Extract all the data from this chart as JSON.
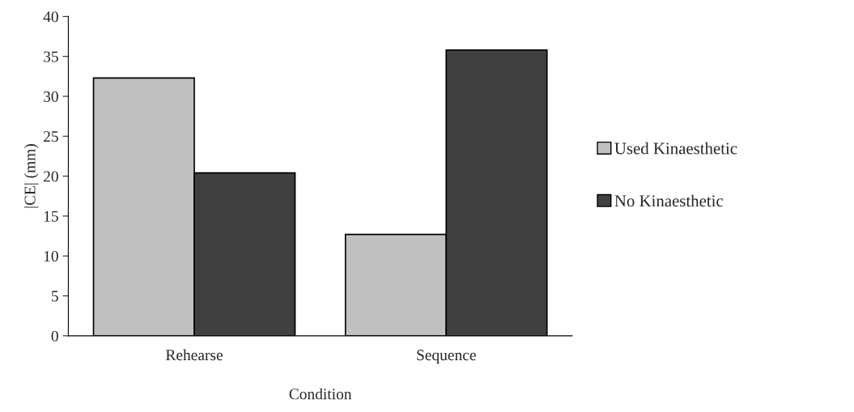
{
  "chart_data": {
    "type": "bar",
    "xlabel": "Condition",
    "ylabel": "|CE| (mm)",
    "categories": [
      "Rehearse",
      "Sequence"
    ],
    "series": [
      {
        "name": "Used Kinaesthetic",
        "color": "#c0c0c0",
        "values": [
          32.3,
          12.7
        ]
      },
      {
        "name": "No Kinaesthetic",
        "color": "#404040",
        "values": [
          20.4,
          35.8
        ]
      }
    ],
    "ylim": [
      0,
      40
    ],
    "yticks": [
      0,
      5,
      10,
      15,
      20,
      25,
      30,
      35,
      40
    ],
    "grid": false,
    "legend": "right"
  }
}
